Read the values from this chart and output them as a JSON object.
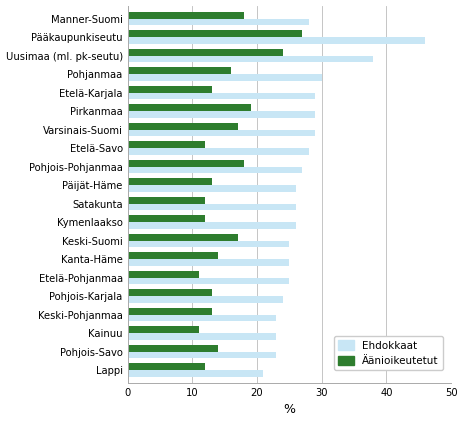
{
  "categories": [
    "Manner-Suomi",
    "Pääkaupunkiseutu",
    "Uusimaa (ml. pk-seutu)",
    "Pohjanmaa",
    "Etelä-Karjala",
    "Pirkanmaa",
    "Varsinais-Suomi",
    "Etelä-Savo",
    "Pohjois-Pohjanmaa",
    "Päijät-Häme",
    "Satakunta",
    "Kymenlaakso",
    "Keski-Suomi",
    "Kanta-Häme",
    "Etelä-Pohjanmaa",
    "Pohjois-Karjala",
    "Keski-Pohjanmaa",
    "Kainuu",
    "Pohjois-Savo",
    "Lappi"
  ],
  "ehdokkaat": [
    28,
    46,
    38,
    30,
    29,
    29,
    29,
    28,
    27,
    26,
    26,
    26,
    25,
    25,
    25,
    24,
    23,
    23,
    23,
    21
  ],
  "aanioikeutetut": [
    18,
    27,
    24,
    16,
    13,
    19,
    17,
    12,
    18,
    13,
    12,
    12,
    17,
    14,
    11,
    13,
    13,
    11,
    14,
    12
  ],
  "ehdokkaat_color": "#c8e6f5",
  "aanioikeutetut_color": "#2e7d2e",
  "xlabel": "%",
  "xlim": [
    0,
    50
  ],
  "xticks": [
    0,
    10,
    20,
    30,
    40,
    50
  ],
  "legend_ehdokkaat": "Ehdokkaat",
  "legend_aanioikeutetut": "Äänioikeutetut",
  "bar_height": 0.36,
  "grid_color": "#bbbbbb",
  "background_color": "#ffffff"
}
